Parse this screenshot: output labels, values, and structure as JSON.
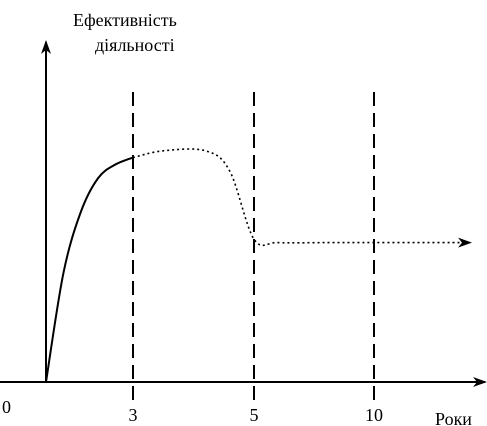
{
  "chart_data": {
    "type": "line",
    "ylabel_line1": "Ефективність",
    "ylabel_line2": "діяльності",
    "xlabel": "Роки",
    "origin_label": "0",
    "xticks": [
      {
        "value": 3,
        "label": "3"
      },
      {
        "value": 5,
        "label": "5"
      },
      {
        "value": 10,
        "label": "10"
      }
    ],
    "series": [
      {
        "style": "solid",
        "points": [
          [
            0,
            0
          ],
          [
            0.6,
            0.32
          ],
          [
            1.2,
            0.5
          ],
          [
            1.8,
            0.6
          ],
          [
            2.4,
            0.64
          ],
          [
            3,
            0.66
          ]
        ]
      },
      {
        "style": "dotted",
        "points": [
          [
            3,
            0.66
          ],
          [
            3.5,
            0.68
          ],
          [
            4.2,
            0.68
          ],
          [
            4.6,
            0.62
          ],
          [
            5,
            0.42
          ],
          [
            6,
            0.41
          ],
          [
            8,
            0.41
          ],
          [
            10,
            0.41
          ],
          [
            12,
            0.41
          ],
          [
            13.5,
            0.41
          ]
        ]
      }
    ],
    "grid": false
  }
}
